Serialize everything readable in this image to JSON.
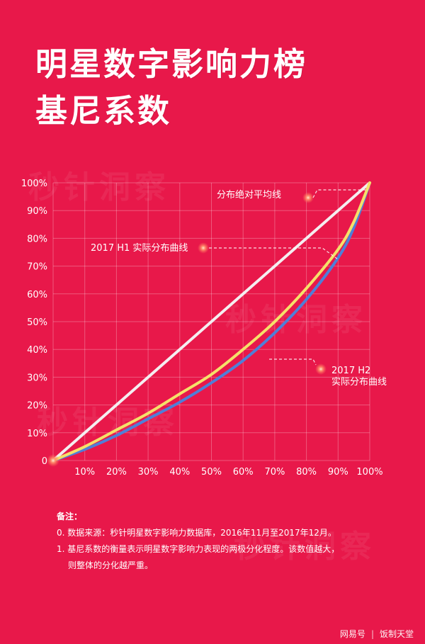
{
  "title": {
    "line1": "明星数字影响力榜",
    "line2": "基尼系数"
  },
  "watermark": "秒针洞察",
  "chart_data": {
    "type": "line",
    "xlim": [
      0,
      100
    ],
    "ylim": [
      0,
      100
    ],
    "x_ticks": [
      "10%",
      "20%",
      "30%",
      "40%",
      "50%",
      "60%",
      "70%",
      "80%",
      "90%",
      "100%"
    ],
    "y_ticks": [
      "0",
      "10%",
      "20%",
      "30%",
      "40%",
      "50%",
      "60%",
      "70%",
      "80%",
      "90%",
      "100%"
    ],
    "grid": true,
    "series": [
      {
        "name": "分布绝对平均线",
        "color": "#f4eef0",
        "x": [
          0,
          100
        ],
        "y": [
          0,
          100
        ]
      },
      {
        "name": "2017 H1 实际分布曲线",
        "color": "#f5e169",
        "x": [
          0,
          10,
          20,
          30,
          40,
          50,
          60,
          70,
          80,
          90,
          95,
          100
        ],
        "y": [
          0,
          5,
          11,
          17,
          24,
          31,
          40,
          50,
          62,
          76,
          86,
          100
        ]
      },
      {
        "name": "2017 H2 实际分布曲线",
        "color": "#4f7fd8",
        "x": [
          0,
          10,
          20,
          30,
          40,
          50,
          60,
          70,
          80,
          90,
          95,
          100
        ],
        "y": [
          0,
          4,
          9,
          15,
          21,
          28,
          36,
          46,
          58,
          73,
          84,
          100
        ]
      }
    ],
    "annotations": [
      {
        "text": "分布绝对平均线"
      },
      {
        "text": "2017 H1 实际分布曲线"
      },
      {
        "text": "2017 H2"
      },
      {
        "text": "实际分布曲线"
      }
    ]
  },
  "notes": {
    "head": "备注：",
    "items": [
      "0. 数据来源：秒针明星数字影响力数据库，2016年11月至2017年12月。",
      "1. 基尼系数的衡量表示明星数字影响力表现的两极分化程度。该数值越大，",
      "则整体的分化越严重。"
    ]
  },
  "footer": {
    "source": "网易号",
    "separator": "|",
    "author": "饭制天堂"
  }
}
